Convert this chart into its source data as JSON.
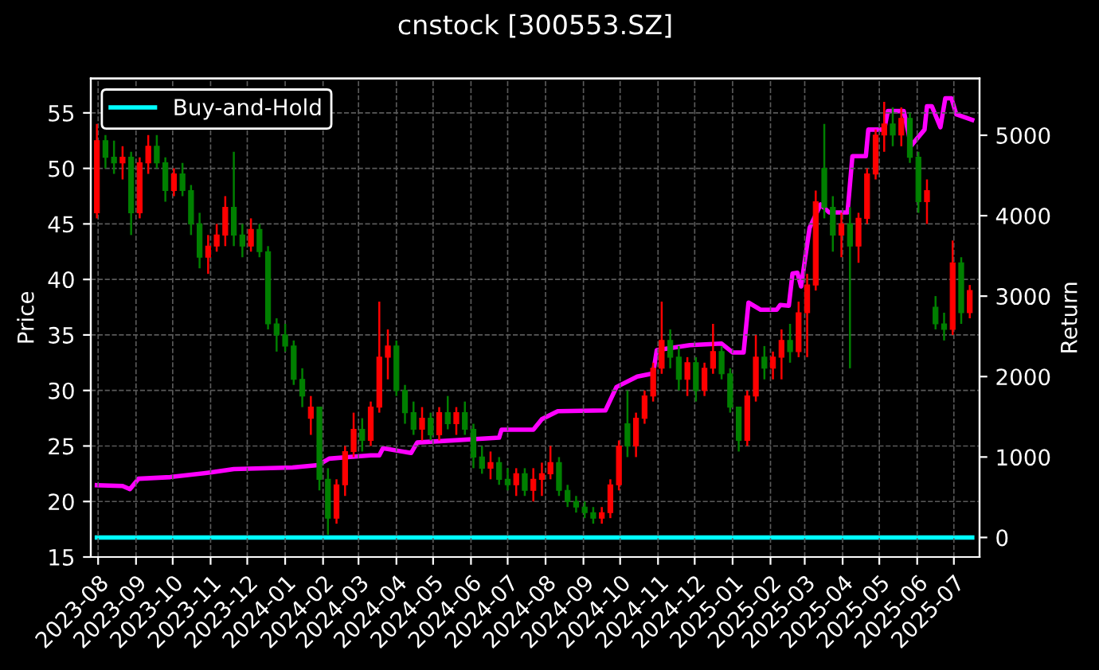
{
  "chart_data": {
    "type": "candlestick",
    "title": "cnstock [300553.SZ]",
    "ylabel": "Price",
    "y2label": "Return",
    "x": [
      "2023-07-31",
      "2023-08-07",
      "2023-08-14",
      "2023-08-21",
      "2023-08-28",
      "2023-09-04",
      "2023-09-11",
      "2023-09-18",
      "2023-09-25",
      "2023-10-02",
      "2023-10-09",
      "2023-10-16",
      "2023-10-23",
      "2023-10-30",
      "2023-11-06",
      "2023-11-13",
      "2023-11-20",
      "2023-11-27",
      "2023-12-04",
      "2023-12-11",
      "2023-12-18",
      "2023-12-25",
      "2024-01-01",
      "2024-01-08",
      "2024-01-15",
      "2024-01-22",
      "2024-01-29",
      "2024-02-05",
      "2024-02-12",
      "2024-02-19",
      "2024-02-26",
      "2024-03-04",
      "2024-03-11",
      "2024-03-18",
      "2024-03-25",
      "2024-04-01",
      "2024-04-08",
      "2024-04-15",
      "2024-04-22",
      "2024-04-29",
      "2024-05-06",
      "2024-05-13",
      "2024-05-20",
      "2024-05-27",
      "2024-06-03",
      "2024-06-10",
      "2024-06-17",
      "2024-06-24",
      "2024-07-01",
      "2024-07-08",
      "2024-07-15",
      "2024-07-22",
      "2024-07-29",
      "2024-08-05",
      "2024-08-12",
      "2024-08-19",
      "2024-08-26",
      "2024-09-02",
      "2024-09-09",
      "2024-09-16",
      "2024-09-23",
      "2024-09-30",
      "2024-10-07",
      "2024-10-14",
      "2024-10-21",
      "2024-10-28",
      "2024-11-04",
      "2024-11-11",
      "2024-11-18",
      "2024-11-25",
      "2024-12-02",
      "2024-12-09",
      "2024-12-16",
      "2024-12-23",
      "2024-12-30",
      "2025-01-06",
      "2025-01-13",
      "2025-01-20",
      "2025-01-27",
      "2025-02-03",
      "2025-02-10",
      "2025-02-17",
      "2025-02-24",
      "2025-03-03",
      "2025-03-10",
      "2025-03-17",
      "2025-03-24",
      "2025-03-31",
      "2025-04-07",
      "2025-04-14",
      "2025-04-21",
      "2025-04-28",
      "2025-05-05",
      "2025-05-12",
      "2025-05-19",
      "2025-05-26",
      "2025-06-02",
      "2025-06-09",
      "2025-06-16",
      "2025-06-23",
      "2025-06-30",
      "2025-07-07",
      "2025-07-14"
    ],
    "ohlc": [
      [
        46,
        54,
        45.5,
        52.5
      ],
      [
        52.5,
        53,
        50,
        51
      ],
      [
        51,
        52.5,
        49.5,
        50.5
      ],
      [
        50.5,
        52,
        49,
        51
      ],
      [
        51,
        51.5,
        44,
        46
      ],
      [
        46,
        51,
        45.5,
        50.5
      ],
      [
        50.5,
        53,
        49.5,
        52
      ],
      [
        52,
        53,
        50,
        50.5
      ],
      [
        50.5,
        51,
        47,
        48
      ],
      [
        48,
        50,
        47.5,
        49.5
      ],
      [
        49.5,
        50.5,
        47.5,
        48
      ],
      [
        48,
        48.5,
        44,
        45
      ],
      [
        45,
        46,
        41,
        42
      ],
      [
        42,
        44,
        40.5,
        43
      ],
      [
        43,
        45,
        42.5,
        44
      ],
      [
        44,
        47.5,
        43,
        46.5
      ],
      [
        46.5,
        51.5,
        43,
        44
      ],
      [
        44,
        45,
        42,
        43
      ],
      [
        43,
        45.5,
        42.5,
        44.5
      ],
      [
        44.5,
        45,
        42,
        42.5
      ],
      [
        42.5,
        43,
        35.5,
        36
      ],
      [
        36,
        36.5,
        33.5,
        35
      ],
      [
        35,
        36,
        33.5,
        34
      ],
      [
        34,
        34.5,
        30.5,
        31
      ],
      [
        31,
        32,
        28.5,
        29.5
      ],
      [
        27.5,
        29.5,
        26,
        28.5
      ],
      [
        28.5,
        28.5,
        21,
        22
      ],
      [
        22,
        23,
        17,
        18.5
      ],
      [
        18.5,
        22,
        18,
        21.5
      ],
      [
        21.5,
        25,
        20.5,
        24.5
      ],
      [
        24.5,
        28,
        24,
        26.5
      ],
      [
        26.5,
        27.5,
        24.5,
        25.5
      ],
      [
        25.5,
        29,
        25,
        28.5
      ],
      [
        28.5,
        38,
        28,
        33
      ],
      [
        33,
        35.5,
        31,
        34
      ],
      [
        34,
        34.5,
        29.5,
        30
      ],
      [
        30,
        30.5,
        27,
        28
      ],
      [
        28,
        29,
        26,
        26.5
      ],
      [
        26.5,
        28.5,
        25.5,
        27.5
      ],
      [
        27.5,
        28,
        25.5,
        26
      ],
      [
        26,
        28.5,
        25.5,
        28
      ],
      [
        28,
        29.5,
        26.5,
        27
      ],
      [
        27,
        28.5,
        26,
        28
      ],
      [
        28,
        29,
        26,
        26.5
      ],
      [
        26.5,
        27,
        23,
        24
      ],
      [
        24,
        25,
        22.5,
        23
      ],
      [
        23,
        24.5,
        22,
        23.5
      ],
      [
        23.5,
        24,
        21.5,
        22
      ],
      [
        22,
        23,
        21,
        21.5
      ],
      [
        21.5,
        23,
        20.5,
        22.5
      ],
      [
        22.5,
        23,
        20.5,
        21
      ],
      [
        21,
        23,
        20,
        22
      ],
      [
        22,
        23.5,
        20.5,
        22.5
      ],
      [
        22.5,
        25,
        22,
        23.5
      ],
      [
        23.5,
        24,
        20.5,
        21
      ],
      [
        21,
        21.5,
        19.5,
        20
      ],
      [
        20,
        20.5,
        19,
        19.5
      ],
      [
        19.5,
        20,
        18.5,
        19
      ],
      [
        19,
        19.5,
        18,
        18.5
      ],
      [
        18.5,
        19.5,
        18,
        19
      ],
      [
        19,
        22,
        18.5,
        21.5
      ],
      [
        21.5,
        25.5,
        21,
        25
      ],
      [
        27,
        30,
        24,
        25
      ],
      [
        25,
        28,
        24,
        27.5
      ],
      [
        27.5,
        30,
        27,
        29.5
      ],
      [
        29.5,
        32.5,
        29,
        32
      ],
      [
        32,
        38,
        31.5,
        34.5
      ],
      [
        34.5,
        35.5,
        32,
        33
      ],
      [
        33,
        34,
        30,
        31
      ],
      [
        31,
        33,
        29.5,
        32.5
      ],
      [
        32.5,
        33,
        29,
        30
      ],
      [
        30,
        32.5,
        29.5,
        32
      ],
      [
        32,
        36,
        31.5,
        33.5
      ],
      [
        33.5,
        34,
        31,
        31.5
      ],
      [
        31.5,
        32,
        28,
        28.5
      ],
      [
        28.5,
        28.5,
        24.5,
        25.5
      ],
      [
        25.5,
        30,
        25,
        29.5
      ],
      [
        29.5,
        35,
        29,
        33
      ],
      [
        33,
        34,
        31,
        32
      ],
      [
        32,
        33.5,
        31,
        33
      ],
      [
        33,
        35.5,
        31,
        34.5
      ],
      [
        34.5,
        36,
        32.5,
        33.5
      ],
      [
        33.5,
        38,
        33,
        37
      ],
      [
        37,
        40.5,
        33,
        39.5
      ],
      [
        39.5,
        48,
        39,
        47
      ],
      [
        50,
        54,
        45.5,
        46.5
      ],
      [
        46.5,
        47.5,
        42.5,
        44
      ],
      [
        44,
        46,
        42,
        45
      ],
      [
        45,
        46.5,
        32,
        43
      ],
      [
        43,
        46,
        41.5,
        45.5
      ],
      [
        45.5,
        50,
        45,
        49.5
      ],
      [
        49.5,
        53.5,
        49,
        53
      ],
      [
        53,
        56,
        51.5,
        54
      ],
      [
        54,
        55.5,
        52,
        53
      ],
      [
        53,
        55.5,
        52,
        54.5
      ],
      [
        54.5,
        55,
        50.5,
        51
      ],
      [
        51,
        51.5,
        46,
        47
      ],
      [
        47,
        49,
        45,
        48
      ],
      [
        37.5,
        38.5,
        35.5,
        36
      ],
      [
        36,
        37,
        34.5,
        35.5
      ],
      [
        35.5,
        43.5,
        35,
        41.5
      ],
      [
        41.5,
        42,
        36,
        37
      ],
      [
        37,
        39.5,
        36.5,
        39
      ]
    ],
    "colors": [
      "#ff0000",
      "#008000",
      "#008000",
      "#ff0000",
      "#008000",
      "#ff0000",
      "#ff0000",
      "#008000",
      "#008000",
      "#ff0000",
      "#008000",
      "#008000",
      "#008000",
      "#ff0000",
      "#ff0000",
      "#ff0000",
      "#008000",
      "#008000",
      "#ff0000",
      "#008000",
      "#008000",
      "#008000",
      "#008000",
      "#008000",
      "#008000",
      "#ff0000",
      "#008000",
      "#008000",
      "#ff0000",
      "#ff0000",
      "#ff0000",
      "#008000",
      "#ff0000",
      "#ff0000",
      "#ff0000",
      "#008000",
      "#008000",
      "#008000",
      "#ff0000",
      "#008000",
      "#ff0000",
      "#008000",
      "#ff0000",
      "#008000",
      "#008000",
      "#008000",
      "#ff0000",
      "#008000",
      "#008000",
      "#ff0000",
      "#008000",
      "#ff0000",
      "#ff0000",
      "#ff0000",
      "#008000",
      "#008000",
      "#008000",
      "#008000",
      "#008000",
      "#ff0000",
      "#ff0000",
      "#ff0000",
      "#008000",
      "#ff0000",
      "#ff0000",
      "#ff0000",
      "#ff0000",
      "#008000",
      "#008000",
      "#ff0000",
      "#008000",
      "#ff0000",
      "#ff0000",
      "#008000",
      "#008000",
      "#008000",
      "#ff0000",
      "#ff0000",
      "#008000",
      "#ff0000",
      "#ff0000",
      "#008000",
      "#ff0000",
      "#ff0000",
      "#ff0000",
      "#008000",
      "#008000",
      "#ff0000",
      "#008000",
      "#ff0000",
      "#ff0000",
      "#ff0000",
      "#ff0000",
      "#008000",
      "#ff0000",
      "#008000",
      "#008000",
      "#ff0000",
      "#008000",
      "#008000",
      "#ff0000",
      "#008000",
      "#ff0000"
    ],
    "series": [
      {
        "type": "line",
        "axis": "y2",
        "color": "#ff00ff",
        "x": [
          "2023-07-31",
          "2023-08-21",
          "2023-08-27",
          "2023-09-03",
          "2023-09-29",
          "2023-11-02",
          "2023-11-20",
          "2024-01-07",
          "2024-01-28",
          "2024-02-06",
          "2024-02-23",
          "2024-03-11",
          "2024-03-18",
          "2024-03-21",
          "2024-04-13",
          "2024-04-18",
          "2024-06-24",
          "2024-06-26",
          "2024-07-22",
          "2024-07-29",
          "2024-08-11",
          "2024-09-19",
          "2024-09-28",
          "2024-10-15",
          "2024-10-28",
          "2024-10-31",
          "2024-11-27",
          "2024-12-23",
          "2025-01-01",
          "2025-01-10",
          "2025-01-14",
          "2025-01-24",
          "2025-02-06",
          "2025-02-09",
          "2025-02-16",
          "2025-02-19",
          "2025-02-23",
          "2025-02-26",
          "2025-03-05",
          "2025-03-14",
          "2025-03-21",
          "2025-04-05",
          "2025-04-09",
          "2025-04-20",
          "2025-04-22",
          "2025-05-05",
          "2025-05-08",
          "2025-05-21",
          "2025-05-27",
          "2025-06-07",
          "2025-06-09",
          "2025-06-13",
          "2025-06-20",
          "2025-06-24",
          "2025-06-29",
          "2025-07-03",
          "2025-07-16"
        ],
        "values": [
          650,
          640,
          600,
          730,
          750,
          810,
          850,
          870,
          900,
          980,
          1000,
          1020,
          1020,
          1110,
          1050,
          1180,
          1240,
          1340,
          1340,
          1470,
          1570,
          1580,
          1870,
          2000,
          2040,
          2330,
          2390,
          2410,
          2300,
          2300,
          2920,
          2830,
          2830,
          2890,
          2880,
          3280,
          3290,
          3120,
          3850,
          4140,
          4040,
          4040,
          4740,
          4740,
          5070,
          5070,
          5300,
          5300,
          4870,
          5070,
          5360,
          5360,
          5100,
          5460,
          5460,
          5260,
          5190
        ]
      },
      {
        "name": "Buy-and-Hold",
        "type": "line",
        "axis": "y2",
        "color": "#00ffff",
        "x": [
          "2023-07-31",
          "2025-07-16"
        ],
        "values": [
          0,
          0
        ]
      }
    ],
    "xlim": [
      "2023-07-26",
      "2025-07-22"
    ],
    "xticks": [
      "2023-08",
      "2023-09",
      "2023-10",
      "2023-11",
      "2023-12",
      "2024-01",
      "2024-02",
      "2024-03",
      "2024-04",
      "2024-05",
      "2024-06",
      "2024-07",
      "2024-08",
      "2024-09",
      "2024-10",
      "2024-11",
      "2024-12",
      "2025-01",
      "2025-02",
      "2025-03",
      "2025-04",
      "2025-05",
      "2025-06",
      "2025-07"
    ],
    "ylim": [
      15,
      58.1
    ],
    "yticks": [
      15,
      20,
      25,
      30,
      35,
      40,
      45,
      50,
      55
    ],
    "y2lim": [
      -243,
      5706
    ],
    "y2ticks": [
      0,
      1000,
      2000,
      3000,
      4000,
      5000
    ],
    "grid": true,
    "legend": "top left"
  }
}
